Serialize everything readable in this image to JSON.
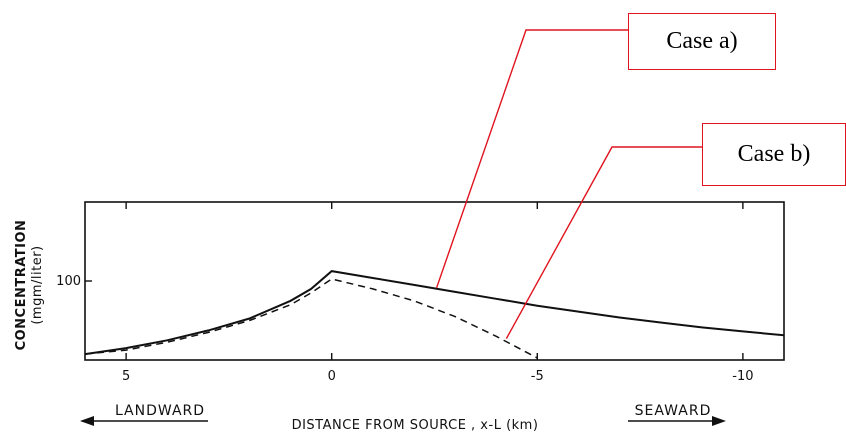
{
  "chart_data": {
    "type": "line",
    "xlabel": "DISTANCE FROM SOURCE , x-L (km)",
    "ylabel": "CONCENTRATION",
    "ylabel_unit": "(mgm/liter)",
    "x_ticks": [
      {
        "value": 5,
        "label": "5"
      },
      {
        "value": 0,
        "label": "0"
      },
      {
        "value": -5,
        "label": "-5"
      },
      {
        "value": -10,
        "label": "-10"
      }
    ],
    "y_ticks": [
      {
        "value": 100,
        "label": "100"
      }
    ],
    "xlim": [
      6,
      -11
    ],
    "ylim": [
      60,
      140
    ],
    "x_reversed": true,
    "series": [
      {
        "style": "solid",
        "x": [
          6,
          5,
          4,
          3,
          2,
          1,
          0.5,
          0,
          -1,
          -2,
          -3,
          -4,
          -5,
          -6,
          -7,
          -8,
          -9,
          -10,
          -11
        ],
        "y": [
          63,
          66,
          70,
          75,
          81,
          90,
          96,
          105,
          101.5,
          98,
          94.5,
          91,
          87.5,
          84.5,
          81.5,
          79,
          76.5,
          74.5,
          72.5
        ]
      },
      {
        "style": "dashed",
        "x": [
          6,
          5,
          4,
          3,
          2,
          1,
          0.5,
          0,
          -1,
          -2,
          -3,
          -4,
          -5
        ],
        "y": [
          63,
          65,
          69,
          74,
          80,
          88,
          94,
          101,
          96,
          90,
          82,
          72,
          61
        ]
      }
    ],
    "annotations": [
      {
        "text": "Case a)",
        "target_series": 0
      },
      {
        "text": "Case b)",
        "target_series": 1
      }
    ]
  },
  "directions": {
    "left": "LANDWARD",
    "right": "SEAWARD"
  }
}
